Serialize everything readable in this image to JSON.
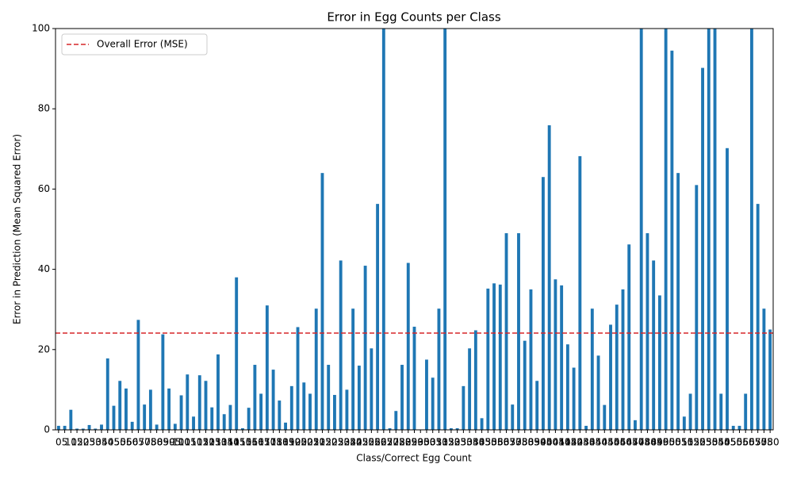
{
  "chart_data": {
    "type": "bar",
    "title": "Error in Egg Counts per Class",
    "xlabel": "Class/Correct Egg Count",
    "ylabel": "Error in Prediction (Mean Squared Error)",
    "categories": [
      0,
      5,
      10,
      15,
      20,
      25,
      30,
      35,
      40,
      45,
      50,
      55,
      60,
      65,
      70,
      75,
      80,
      85,
      90,
      95,
      100,
      105,
      110,
      115,
      120,
      125,
      130,
      135,
      140,
      145,
      150,
      155,
      160,
      165,
      170,
      175,
      180,
      185,
      190,
      195,
      200,
      205,
      210,
      215,
      220,
      225,
      230,
      235,
      240,
      245,
      250,
      255,
      260,
      265,
      270,
      275,
      280,
      285,
      290,
      295,
      300,
      305,
      310,
      315,
      320,
      325,
      330,
      335,
      340,
      345,
      350,
      355,
      360,
      365,
      370,
      375,
      380,
      385,
      390,
      395,
      400,
      405,
      410,
      415,
      420,
      425,
      430,
      435,
      440,
      445,
      450,
      455,
      460,
      465,
      470,
      475,
      480,
      485,
      490,
      495,
      500,
      505,
      510,
      515,
      520,
      525,
      530,
      535,
      540,
      545,
      550,
      555,
      560,
      565,
      570,
      575,
      580
    ],
    "values": [
      1,
      1,
      5,
      0.3,
      0.3,
      1.2,
      0.3,
      1.3,
      17.8,
      6,
      12.2,
      10.3,
      2,
      27.4,
      6.3,
      10,
      1.3,
      23.8,
      10.3,
      1.5,
      8.6,
      13.8,
      3.3,
      13.6,
      12.2,
      5.6,
      18.8,
      3.9,
      6.2,
      38,
      0.4,
      5.5,
      16.2,
      9,
      31,
      15,
      7.3,
      1.8,
      10.9,
      25.6,
      11.8,
      9,
      30.2,
      64,
      16.2,
      8.7,
      42.2,
      10,
      30.2,
      16,
      40.9,
      20.3,
      56.3,
      100,
      0.4,
      4.7,
      16.2,
      41.6,
      25.7,
      0,
      17.5,
      13,
      30.2,
      100,
      0.4,
      0.4,
      10.9,
      20.3,
      24.8,
      2.9,
      35.2,
      36.5,
      36.2,
      49,
      6.3,
      49,
      22.2,
      35,
      12.2,
      63,
      75.9,
      37.5,
      36,
      21.3,
      15.5,
      68.2,
      1,
      30.2,
      18.5,
      6.2,
      26.2,
      31.2,
      35,
      46.2,
      2.4,
      100,
      49,
      42.2,
      33.5,
      100,
      94.5,
      64,
      3.3,
      9,
      61,
      90.2,
      100,
      100,
      9,
      70.2,
      1,
      1,
      9,
      100,
      56.3,
      30.2,
      25
    ],
    "color": "#1f77b4",
    "reference_line": {
      "name": "Overall Error (MSE)",
      "value": 24.1,
      "color": "#d62728"
    },
    "ylim": [
      0,
      100
    ],
    "yticks": [
      0,
      20,
      40,
      60,
      80,
      100
    ],
    "legend": "upper left"
  }
}
